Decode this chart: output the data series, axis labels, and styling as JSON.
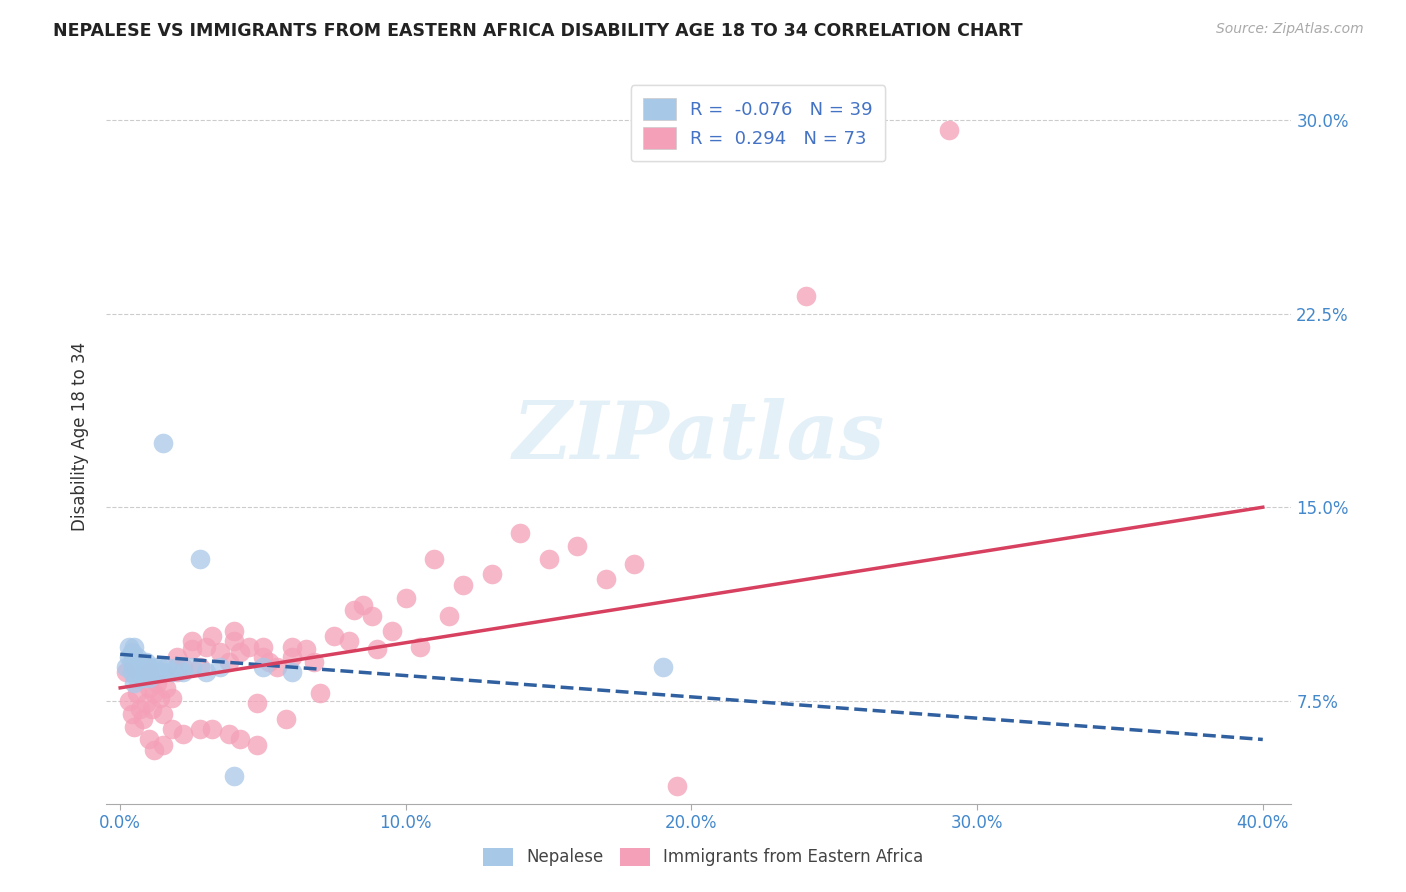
{
  "title": "NEPALESE VS IMMIGRANTS FROM EASTERN AFRICA DISABILITY AGE 18 TO 34 CORRELATION CHART",
  "source": "Source: ZipAtlas.com",
  "xlabel_ticks": [
    "0.0%",
    "10.0%",
    "20.0%",
    "30.0%",
    "40.0%"
  ],
  "xlabel_tick_vals": [
    0.0,
    0.1,
    0.2,
    0.3,
    0.4
  ],
  "ylabel": "Disability Age 18 to 34",
  "ylabel_ticks": [
    "7.5%",
    "15.0%",
    "22.5%",
    "30.0%"
  ],
  "ylabel_tick_vals": [
    0.075,
    0.15,
    0.225,
    0.3
  ],
  "xlim": [
    0.0,
    0.4
  ],
  "ylim": [
    0.04,
    0.32
  ],
  "blue_R": -0.076,
  "blue_N": 39,
  "pink_R": 0.294,
  "pink_N": 73,
  "blue_color": "#a8c8e8",
  "pink_color": "#f4a0b8",
  "blue_line_color": "#3060a0",
  "pink_line_color": "#d84060",
  "blue_line_start_y": 0.093,
  "blue_line_end_y": 0.06,
  "pink_line_start_y": 0.08,
  "pink_line_end_y": 0.15,
  "legend_label_blue": "Nepalese",
  "legend_label_pink": "Immigrants from Eastern Africa",
  "watermark": "ZIPatlas",
  "blue_scatter_x": [
    0.002,
    0.003,
    0.003,
    0.004,
    0.004,
    0.004,
    0.005,
    0.005,
    0.005,
    0.005,
    0.006,
    0.006,
    0.006,
    0.007,
    0.007,
    0.008,
    0.008,
    0.009,
    0.009,
    0.01,
    0.01,
    0.011,
    0.012,
    0.013,
    0.014,
    0.015,
    0.016,
    0.018,
    0.02,
    0.022,
    0.025,
    0.03,
    0.035,
    0.04,
    0.05,
    0.06,
    0.19,
    0.015,
    0.028
  ],
  "blue_scatter_y": [
    0.088,
    0.092,
    0.096,
    0.086,
    0.09,
    0.094,
    0.082,
    0.088,
    0.092,
    0.096,
    0.084,
    0.088,
    0.092,
    0.086,
    0.09,
    0.084,
    0.088,
    0.086,
    0.09,
    0.084,
    0.088,
    0.086,
    0.088,
    0.086,
    0.088,
    0.086,
    0.088,
    0.086,
    0.088,
    0.086,
    0.088,
    0.086,
    0.088,
    0.046,
    0.088,
    0.086,
    0.088,
    0.175,
    0.13
  ],
  "pink_scatter_x": [
    0.002,
    0.003,
    0.004,
    0.005,
    0.006,
    0.007,
    0.008,
    0.009,
    0.01,
    0.01,
    0.011,
    0.012,
    0.013,
    0.014,
    0.015,
    0.016,
    0.018,
    0.02,
    0.02,
    0.022,
    0.025,
    0.025,
    0.028,
    0.03,
    0.032,
    0.035,
    0.038,
    0.04,
    0.04,
    0.042,
    0.045,
    0.048,
    0.05,
    0.05,
    0.052,
    0.055,
    0.058,
    0.06,
    0.06,
    0.065,
    0.068,
    0.07,
    0.075,
    0.08,
    0.082,
    0.085,
    0.088,
    0.09,
    0.095,
    0.1,
    0.105,
    0.11,
    0.115,
    0.12,
    0.13,
    0.14,
    0.15,
    0.16,
    0.17,
    0.18,
    0.01,
    0.012,
    0.015,
    0.018,
    0.022,
    0.028,
    0.032,
    0.038,
    0.042,
    0.048,
    0.195,
    0.24,
    0.29
  ],
  "pink_scatter_y": [
    0.086,
    0.075,
    0.07,
    0.065,
    0.078,
    0.072,
    0.068,
    0.074,
    0.08,
    0.086,
    0.072,
    0.078,
    0.082,
    0.076,
    0.07,
    0.08,
    0.076,
    0.092,
    0.086,
    0.088,
    0.098,
    0.095,
    0.088,
    0.096,
    0.1,
    0.094,
    0.09,
    0.102,
    0.098,
    0.094,
    0.096,
    0.074,
    0.096,
    0.092,
    0.09,
    0.088,
    0.068,
    0.092,
    0.096,
    0.095,
    0.09,
    0.078,
    0.1,
    0.098,
    0.11,
    0.112,
    0.108,
    0.095,
    0.102,
    0.115,
    0.096,
    0.13,
    0.108,
    0.12,
    0.124,
    0.14,
    0.13,
    0.135,
    0.122,
    0.128,
    0.06,
    0.056,
    0.058,
    0.064,
    0.062,
    0.064,
    0.064,
    0.062,
    0.06,
    0.058,
    0.042,
    0.232,
    0.296
  ]
}
